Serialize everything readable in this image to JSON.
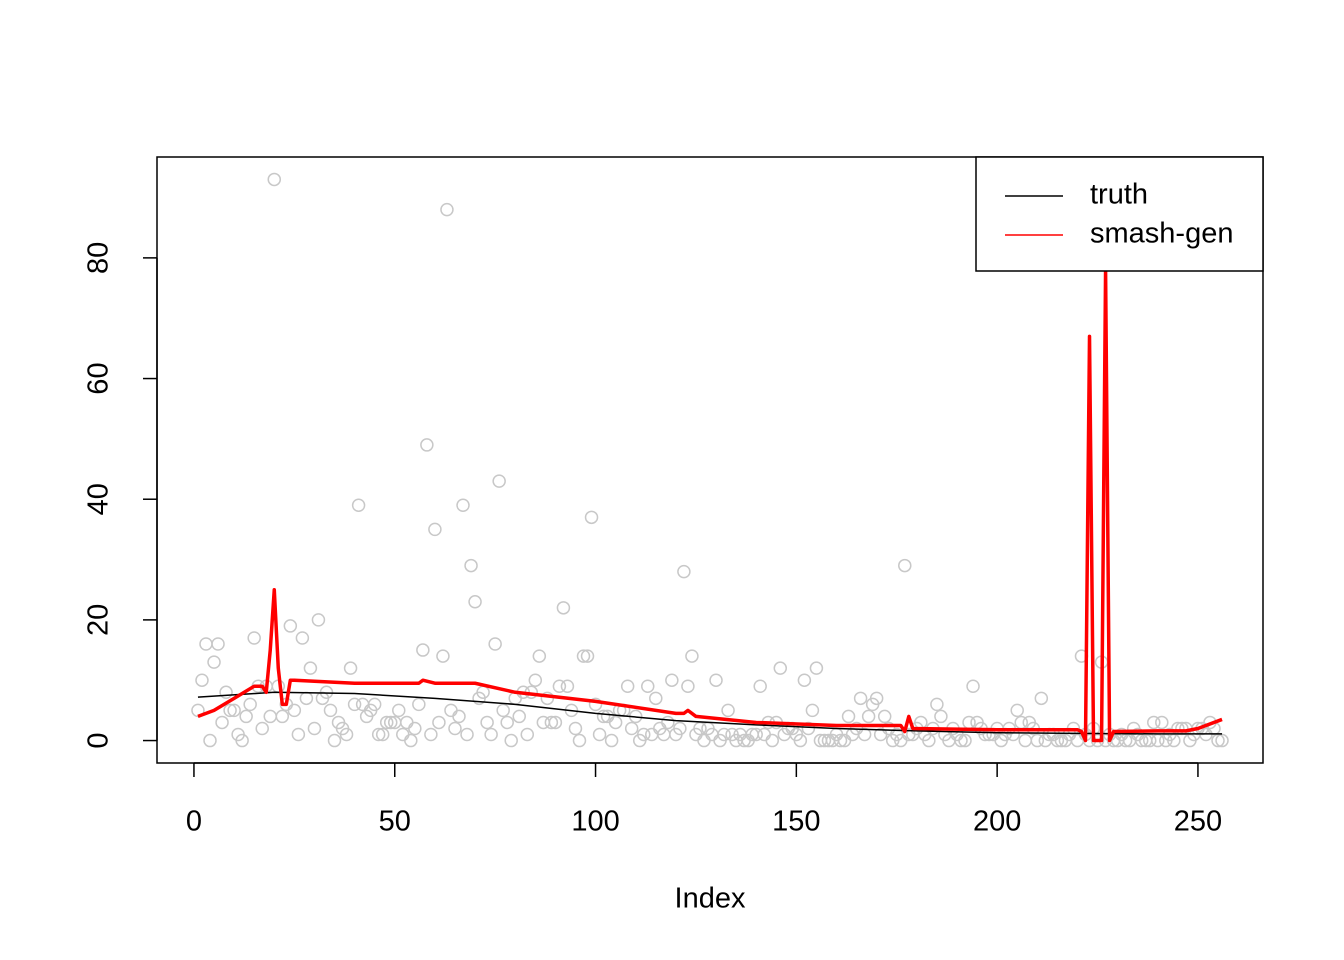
{
  "chart_data": {
    "type": "scatter-line",
    "x_label": "Index",
    "xlim": [
      -9.2,
      266.2
    ],
    "ylim": [
      -3.72,
      96.72
    ],
    "xticks": [
      0,
      50,
      100,
      150,
      200,
      250
    ],
    "yticks": [
      0,
      20,
      40,
      60,
      80
    ],
    "legend_position": "top-right",
    "points": {
      "color": "#c8c8c8",
      "x": [
        1,
        2,
        3,
        4,
        5,
        6,
        7,
        8,
        9,
        10,
        11,
        12,
        13,
        14,
        15,
        16,
        17,
        18,
        19,
        20,
        21,
        22,
        23,
        24,
        25,
        26,
        27,
        28,
        29,
        30,
        31,
        32,
        33,
        34,
        35,
        36,
        37,
        38,
        39,
        40,
        41,
        42,
        43,
        44,
        45,
        46,
        47,
        48,
        49,
        50,
        51,
        52,
        53,
        54,
        55,
        56,
        57,
        58,
        59,
        60,
        61,
        62,
        63,
        64,
        65,
        66,
        67,
        68,
        69,
        70,
        71,
        72,
        73,
        74,
        75,
        76,
        77,
        78,
        79,
        80,
        81,
        82,
        83,
        84,
        85,
        86,
        87,
        88,
        89,
        90,
        91,
        92,
        93,
        94,
        95,
        96,
        97,
        98,
        99,
        100,
        101,
        102,
        103,
        104,
        105,
        106,
        107,
        108,
        109,
        110,
        111,
        112,
        113,
        114,
        115,
        116,
        117,
        118,
        119,
        120,
        121,
        122,
        123,
        124,
        125,
        126,
        127,
        128,
        129,
        130,
        131,
        132,
        133,
        134,
        135,
        136,
        137,
        138,
        139,
        140,
        141,
        142,
        143,
        144,
        145,
        146,
        147,
        148,
        149,
        150,
        151,
        152,
        153,
        154,
        155,
        156,
        157,
        158,
        159,
        160,
        161,
        162,
        163,
        164,
        165,
        166,
        167,
        168,
        169,
        170,
        171,
        172,
        173,
        174,
        175,
        176,
        177,
        178,
        179,
        180,
        181,
        182,
        183,
        184,
        185,
        186,
        187,
        188,
        189,
        190,
        191,
        192,
        193,
        194,
        195,
        196,
        197,
        198,
        199,
        200,
        201,
        202,
        203,
        204,
        205,
        206,
        207,
        208,
        209,
        210,
        211,
        212,
        213,
        214,
        215,
        216,
        217,
        218,
        219,
        220,
        221,
        222,
        223,
        224,
        225,
        226,
        227,
        228,
        229,
        230,
        231,
        232,
        233,
        234,
        235,
        236,
        237,
        238,
        239,
        240,
        241,
        242,
        243,
        244,
        245,
        246,
        247,
        248,
        249,
        250,
        251,
        252,
        253,
        254,
        255,
        256
      ],
      "values": [
        5,
        10,
        16,
        0,
        13,
        16,
        3,
        8,
        5,
        5,
        1,
        0,
        4,
        6,
        17,
        9,
        2,
        9,
        4,
        93,
        9,
        4,
        6,
        19,
        5,
        1,
        17,
        7,
        12,
        2,
        20,
        7,
        8,
        5,
        0,
        3,
        2,
        1,
        12,
        6,
        39,
        6,
        4,
        5,
        6,
        1,
        1,
        3,
        3,
        3,
        5,
        1,
        3,
        0,
        2,
        6,
        15,
        49,
        1,
        35,
        3,
        14,
        88,
        5,
        2,
        4,
        39,
        1,
        29,
        23,
        7,
        8,
        3,
        1,
        16,
        43,
        5,
        3,
        0,
        7,
        4,
        8,
        1,
        8,
        10,
        14,
        3,
        7,
        3,
        3,
        9,
        22,
        9,
        5,
        2,
        0,
        14,
        14,
        37,
        6,
        1,
        4,
        4,
        0,
        3,
        5,
        5,
        9,
        2,
        4,
        0,
        1,
        9,
        1,
        7,
        2,
        1,
        3,
        10,
        1,
        2,
        28,
        9,
        14,
        1,
        2,
        0,
        2,
        1,
        10,
        0,
        1,
        5,
        1,
        0,
        1,
        0,
        0,
        1,
        1,
        9,
        1,
        3,
        0,
        3,
        12,
        1,
        2,
        2,
        1,
        0,
        10,
        2,
        5,
        12,
        0,
        0,
        0,
        0,
        1,
        0,
        0,
        4,
        1,
        2,
        7,
        1,
        4,
        6,
        7,
        1,
        4,
        2,
        0,
        1,
        0,
        29,
        1,
        1,
        2,
        3,
        1,
        0,
        2,
        6,
        4,
        1,
        0,
        2,
        1,
        0,
        0,
        3,
        9,
        3,
        2,
        1,
        1,
        1,
        2,
        0,
        1,
        2,
        1,
        5,
        3,
        0,
        3,
        2,
        0,
        7,
        0,
        1,
        1,
        0,
        0,
        0,
        1,
        2,
        0,
        14,
        1,
        0,
        2,
        0,
        13,
        0,
        1,
        0,
        0,
        1,
        0,
        0,
        2,
        1,
        0,
        0,
        0,
        3,
        0,
        3,
        0,
        1,
        0,
        2,
        2,
        2,
        0,
        1,
        2,
        2,
        1,
        3,
        2,
        0,
        0
      ]
    },
    "series": [
      {
        "name": "truth",
        "color": "#000000",
        "x": [
          1,
          20,
          40,
          60,
          80,
          100,
          120,
          140,
          160,
          180,
          200,
          220,
          240,
          256
        ],
        "values": [
          7.2,
          8,
          7.8,
          7,
          6,
          4.5,
          3.3,
          2.6,
          2,
          1.6,
          1.3,
          1.2,
          1.1,
          1.1
        ]
      },
      {
        "name": "smash-gen",
        "color": "#ff0000",
        "x": [
          1,
          5,
          10,
          15,
          17,
          18,
          19,
          20,
          21,
          22,
          23,
          24,
          25,
          40,
          56,
          57,
          60,
          70,
          80,
          100,
          120,
          122,
          123,
          125,
          140,
          160,
          176,
          177,
          178,
          179,
          200,
          220,
          221,
          222,
          223,
          224,
          225,
          226,
          227,
          228,
          229,
          240,
          247,
          250,
          256
        ],
        "values": [
          4,
          5,
          7,
          9,
          9,
          8,
          15,
          25,
          12,
          6,
          6,
          10,
          10,
          9.5,
          9.5,
          10,
          9.5,
          9.5,
          8,
          6.5,
          4.5,
          4.5,
          5,
          4,
          3,
          2.5,
          2.5,
          1.5,
          4,
          2,
          1.8,
          1.8,
          1.5,
          0,
          67,
          0,
          0,
          0,
          78,
          0,
          1.5,
          1.6,
          1.6,
          2,
          3.5
        ]
      }
    ]
  }
}
